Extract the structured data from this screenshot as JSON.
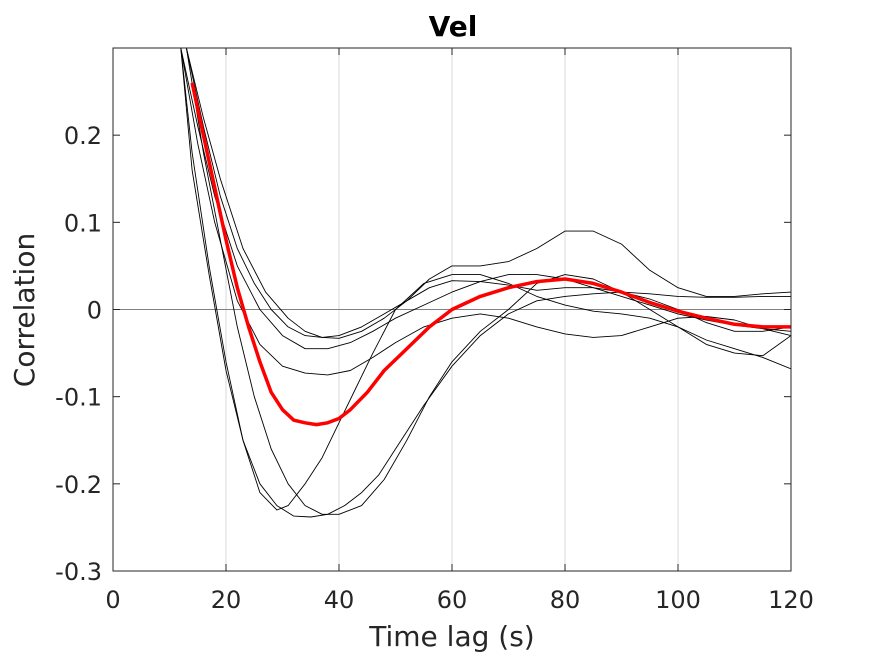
{
  "chart_data": {
    "type": "line",
    "title": "Vel",
    "xlabel": "Time lag (s)",
    "ylabel": "Correlation",
    "xlim": [
      0,
      120
    ],
    "ylim": [
      -0.3,
      0.3
    ],
    "xticks": [
      0,
      20,
      40,
      60,
      80,
      100,
      120
    ],
    "xtick_labels": [
      "0",
      "20",
      "40",
      "60",
      "80",
      "100",
      "120"
    ],
    "yticks": [
      -0.3,
      -0.2,
      -0.1,
      0,
      0.1,
      0.2
    ],
    "ytick_labels": [
      "-0.3",
      "-0.2",
      "-0.1",
      "0",
      "0.1",
      "0.2"
    ],
    "grid": "x",
    "reference_line_y": 0,
    "colors": {
      "series": "#000000",
      "mean": "#ff0000",
      "grid": "#d9d9d9",
      "axes": "#262626",
      "zero": "#808080"
    },
    "series": [
      {
        "x": [
          12,
          15,
          18,
          22,
          26,
          30,
          34,
          38,
          42,
          46,
          50,
          55,
          60,
          65,
          70,
          75,
          80,
          85,
          90,
          95,
          100,
          105,
          110,
          115,
          120
        ],
        "y": [
          0.3,
          0.21,
          0.13,
          0.05,
          0.0,
          -0.03,
          -0.045,
          -0.045,
          -0.038,
          -0.025,
          -0.01,
          0.005,
          0.02,
          0.032,
          0.04,
          0.04,
          0.035,
          0.025,
          0.015,
          0.005,
          -0.005,
          -0.012,
          -0.018,
          -0.022,
          -0.025
        ]
      },
      {
        "x": [
          12,
          15,
          18,
          22,
          26,
          30,
          34,
          38,
          42,
          46,
          50,
          55,
          60,
          65,
          70,
          75,
          80,
          85,
          90,
          95,
          100,
          105,
          110,
          115,
          120
        ],
        "y": [
          0.3,
          0.19,
          0.1,
          0.01,
          -0.04,
          -0.065,
          -0.073,
          -0.075,
          -0.07,
          -0.055,
          -0.038,
          -0.02,
          -0.01,
          -0.005,
          -0.01,
          -0.02,
          -0.028,
          -0.032,
          -0.03,
          -0.02,
          -0.01,
          -0.008,
          -0.012,
          -0.022,
          -0.03
        ]
      },
      {
        "x": [
          13,
          16,
          19,
          23,
          27,
          31,
          34,
          37,
          40,
          44,
          48,
          52,
          56,
          60,
          65,
          70,
          75,
          80,
          85,
          90,
          95,
          100,
          105,
          110,
          115,
          120
        ],
        "y": [
          0.3,
          0.22,
          0.15,
          0.07,
          0.02,
          -0.01,
          -0.025,
          -0.032,
          -0.033,
          -0.025,
          -0.01,
          0.01,
          0.035,
          0.05,
          0.05,
          0.055,
          0.07,
          0.09,
          0.09,
          0.075,
          0.045,
          0.025,
          0.015,
          0.015,
          0.018,
          0.02
        ]
      },
      {
        "x": [
          12,
          14,
          17,
          20,
          23,
          26,
          29,
          32,
          35,
          38,
          41,
          44,
          47,
          50,
          55,
          60,
          65,
          70,
          75,
          80,
          85,
          90,
          95,
          100,
          105,
          110,
          115,
          120
        ],
        "y": [
          0.3,
          0.18,
          0.05,
          -0.06,
          -0.15,
          -0.2,
          -0.225,
          -0.237,
          -0.238,
          -0.235,
          -0.225,
          -0.21,
          -0.19,
          -0.16,
          -0.11,
          -0.065,
          -0.03,
          -0.005,
          0.01,
          0.015,
          0.018,
          0.02,
          0.018,
          0.015,
          0.014,
          0.014,
          0.015,
          0.015
        ]
      },
      {
        "x": [
          12,
          14,
          17,
          20,
          23,
          26,
          29,
          31,
          34,
          37,
          40,
          43,
          46,
          50,
          55,
          60,
          65,
          70,
          75,
          80,
          85,
          90,
          95,
          100,
          105,
          110,
          115,
          120
        ],
        "y": [
          0.3,
          0.16,
          0.04,
          -0.07,
          -0.15,
          -0.21,
          -0.23,
          -0.225,
          -0.2,
          -0.17,
          -0.13,
          -0.09,
          -0.05,
          0.0,
          0.03,
          0.04,
          0.04,
          0.03,
          0.015,
          0.005,
          -0.002,
          -0.005,
          -0.01,
          -0.02,
          -0.035,
          -0.045,
          -0.055,
          -0.068
        ]
      },
      {
        "x": [
          13,
          16,
          19,
          22,
          25,
          28,
          31,
          34,
          37,
          40,
          44,
          48,
          52,
          56,
          60,
          65,
          70,
          75,
          80,
          85,
          90,
          95,
          100,
          105,
          110,
          115,
          120
        ],
        "y": [
          0.3,
          0.18,
          0.08,
          -0.02,
          -0.1,
          -0.16,
          -0.2,
          -0.225,
          -0.235,
          -0.235,
          -0.225,
          -0.195,
          -0.15,
          -0.1,
          -0.06,
          -0.025,
          0.0,
          0.03,
          0.04,
          0.035,
          0.02,
          0.0,
          -0.02,
          -0.04,
          -0.05,
          -0.053,
          -0.03
        ]
      },
      {
        "x": [
          13,
          16,
          19,
          22,
          25,
          28,
          31,
          34,
          37,
          40,
          44,
          48,
          52,
          56,
          60,
          65,
          70,
          75,
          80,
          85,
          90,
          95,
          100,
          105,
          110,
          115,
          120
        ],
        "y": [
          0.3,
          0.21,
          0.13,
          0.07,
          0.03,
          0.0,
          -0.02,
          -0.03,
          -0.032,
          -0.03,
          -0.02,
          -0.005,
          0.01,
          0.025,
          0.033,
          0.032,
          0.028,
          0.022,
          0.025,
          0.025,
          0.02,
          0.012,
          0.0,
          -0.015,
          -0.025,
          -0.025,
          -0.02
        ]
      }
    ],
    "mean": {
      "x": [
        14,
        16,
        18,
        20,
        22,
        24,
        26,
        28,
        30,
        32,
        34,
        36,
        38,
        40,
        42,
        45,
        48,
        52,
        56,
        60,
        65,
        70,
        75,
        80,
        85,
        90,
        95,
        100,
        105,
        110,
        115,
        120
      ],
      "y": [
        0.26,
        0.2,
        0.14,
        0.08,
        0.025,
        -0.02,
        -0.06,
        -0.095,
        -0.115,
        -0.127,
        -0.13,
        -0.132,
        -0.13,
        -0.125,
        -0.115,
        -0.095,
        -0.07,
        -0.045,
        -0.02,
        0.0,
        0.015,
        0.025,
        0.032,
        0.035,
        0.03,
        0.02,
        0.008,
        -0.002,
        -0.01,
        -0.017,
        -0.02,
        -0.02
      ]
    }
  }
}
